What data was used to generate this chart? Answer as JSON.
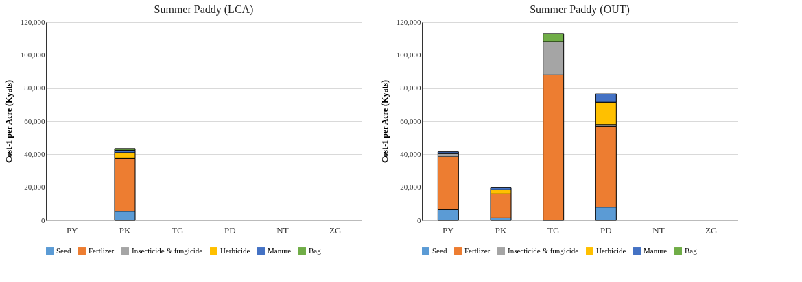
{
  "chart_data": [
    {
      "type": "bar",
      "title": "Summer Paddy (LCA)",
      "ylabel": "Cost-1 per Acre (Kyats)",
      "categories": [
        "PY",
        "PK",
        "TG",
        "PD",
        "NT",
        "ZG"
      ],
      "stacked": true,
      "ylim": [
        0,
        120000
      ],
      "yticks": [
        0,
        {
          "value": 20000,
          "label": "20,000"
        },
        {
          "value": 40000,
          "label": "40,000"
        },
        {
          "value": 60000,
          "label": "60,000"
        },
        {
          "value": 80000,
          "label": "80,000"
        },
        {
          "value": 100000,
          "label": "100,000"
        },
        {
          "value": 120000,
          "label": "120,000"
        }
      ],
      "grid": "y",
      "legend": "bottom",
      "series": [
        {
          "name": "Seed",
          "color": "#5b9bd5",
          "values": [
            null,
            5500,
            null,
            null,
            null,
            null
          ]
        },
        {
          "name": "Fertlizer",
          "color": "#ed7d31",
          "values": [
            null,
            32000,
            null,
            null,
            null,
            null
          ]
        },
        {
          "name": "Insecticide & fungicide",
          "color": "#a5a5a5",
          "values": [
            null,
            null,
            null,
            null,
            null,
            null
          ]
        },
        {
          "name": "Herbicide",
          "color": "#ffc000",
          "values": [
            null,
            3500,
            null,
            null,
            null,
            null
          ]
        },
        {
          "name": "Manure",
          "color": "#4472c4",
          "values": [
            null,
            1500,
            null,
            null,
            null,
            null
          ]
        },
        {
          "name": "Bag",
          "color": "#70ad47",
          "values": [
            null,
            1000,
            null,
            null,
            null,
            null
          ]
        }
      ]
    },
    {
      "type": "bar",
      "title": "Summer Paddy (OUT)",
      "ylabel": "Cost-1 per Acre (Kyats)",
      "categories": [
        "PY",
        "PK",
        "TG",
        "PD",
        "NT",
        "ZG"
      ],
      "stacked": true,
      "ylim": [
        0,
        120000
      ],
      "yticks": [
        0,
        {
          "value": 20000,
          "label": "20,000"
        },
        {
          "value": 40000,
          "label": "40,000"
        },
        {
          "value": 60000,
          "label": "60,000"
        },
        {
          "value": 80000,
          "label": "80,000"
        },
        {
          "value": 100000,
          "label": "100,000"
        },
        {
          "value": 120000,
          "label": "120,000"
        }
      ],
      "grid": "y",
      "legend": "bottom",
      "series": [
        {
          "name": "Seed",
          "color": "#5b9bd5",
          "values": [
            6500,
            1500,
            null,
            8000,
            null,
            null
          ]
        },
        {
          "name": "Fertlizer",
          "color": "#ed7d31",
          "values": [
            32000,
            14500,
            88000,
            49000,
            null,
            null
          ]
        },
        {
          "name": "Insecticide & fungicide",
          "color": "#a5a5a5",
          "values": [
            2000,
            null,
            20000,
            1000,
            null,
            null
          ]
        },
        {
          "name": "Herbicide",
          "color": "#ffc000",
          "values": [
            null,
            2500,
            null,
            13500,
            null,
            null
          ]
        },
        {
          "name": "Manure",
          "color": "#4472c4",
          "values": [
            1000,
            1500,
            null,
            5000,
            null,
            null
          ]
        },
        {
          "name": "Bag",
          "color": "#70ad47",
          "values": [
            null,
            null,
            5000,
            null,
            null,
            null
          ]
        }
      ]
    }
  ]
}
